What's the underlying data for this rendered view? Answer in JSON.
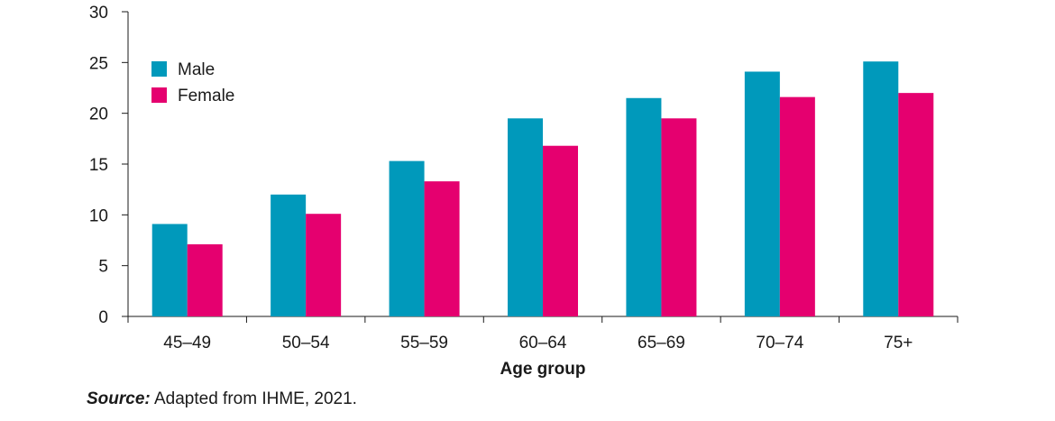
{
  "chart_data": {
    "type": "bar",
    "categories": [
      "45–49",
      "50–54",
      "55–59",
      "60–64",
      "65–69",
      "70–74",
      "75+"
    ],
    "series": [
      {
        "name": "Male",
        "values": [
          9.1,
          12.0,
          15.3,
          19.5,
          21.5,
          24.1,
          25.1
        ],
        "color": "#0099bb"
      },
      {
        "name": "Female",
        "values": [
          7.1,
          10.1,
          13.3,
          16.8,
          19.5,
          21.6,
          22.0
        ],
        "color": "#e5006f"
      }
    ],
    "title": "",
    "xlabel": "Age group",
    "ylabel": "",
    "ylim": [
      0,
      30
    ],
    "yticks": [
      0,
      5,
      10,
      15,
      20,
      25,
      30
    ],
    "grid": false,
    "legend_position": "top-left"
  },
  "source": {
    "label": "Source:",
    "text": " Adapted from IHME, 2021."
  }
}
